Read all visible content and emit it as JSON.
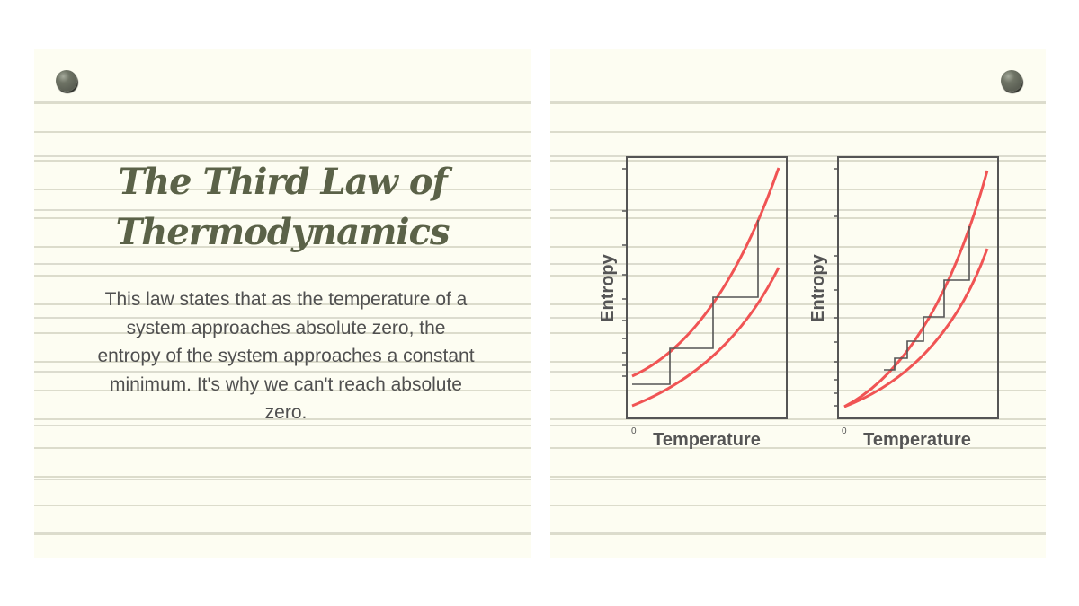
{
  "left_card": {
    "title_line1": "The Third Law of",
    "title_line2": "Thermodynamics",
    "body": "This law states that as the temperature of a system approaches absolute zero, the entropy of the system approaches a constant minimum. It's why we can't reach absolute zero."
  },
  "diagrams": [
    {
      "xlabel": "Temperature",
      "ylabel": "Entropy",
      "origin_label": "0"
    },
    {
      "xlabel": "Temperature",
      "ylabel": "Entropy",
      "origin_label": "0"
    }
  ],
  "colors": {
    "curve": "#f05454",
    "title": "#5b6248",
    "paper": "#fdfdf2",
    "pin": "#6f7466"
  }
}
